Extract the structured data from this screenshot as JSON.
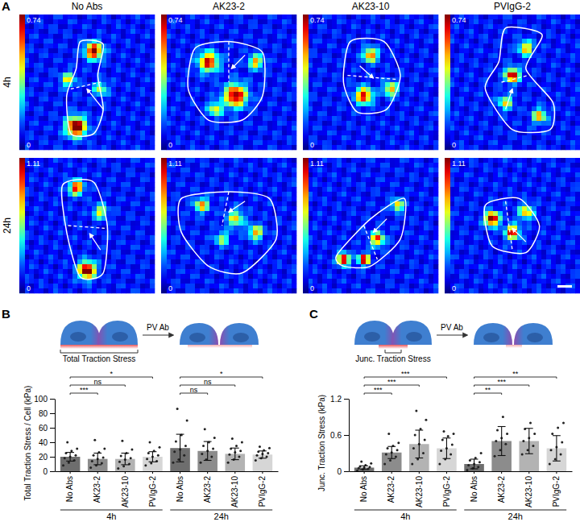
{
  "panel_labels": [
    "A",
    "B",
    "C"
  ],
  "panel_a": {
    "columns": [
      "No Abs",
      "AK23-2",
      "AK23-10",
      "PVIgG-2"
    ],
    "rows": [
      {
        "label": "4h",
        "colorbar": [
          0,
          0.74
        ]
      },
      {
        "label": "24h",
        "colorbar": [
          0,
          1.11
        ]
      }
    ]
  },
  "schematics": [
    {
      "caption": "Total Traction Stress",
      "arrow_label": "PV Ab"
    },
    {
      "caption": "Junc. Traction Stress",
      "arrow_label": "PV Ab"
    }
  ],
  "chart_data": [
    {
      "type": "bar",
      "ylabel": "Total Traction Stress / Cell (kPa)",
      "categories": [
        "No Abs",
        "AK23-2",
        "AK23-10",
        "PVIgG-2",
        "No Abs",
        "AK23-2",
        "AK23-10",
        "PVIgG-2"
      ],
      "values": [
        20,
        17,
        17,
        20,
        32,
        28,
        24,
        23
      ],
      "errors": [
        6,
        8,
        8,
        7,
        19,
        13,
        8,
        5
      ],
      "colors": [
        "#6e6e6e",
        "#8c8c8c",
        "#b3b3b3",
        "#d6d6d6",
        "#6e6e6e",
        "#8c8c8c",
        "#b3b3b3",
        "#d6d6d6"
      ],
      "points": [
        [
          8,
          12,
          15,
          18,
          20,
          22,
          25,
          28,
          31,
          40
        ],
        [
          5,
          8,
          11,
          14,
          17,
          19,
          22,
          26,
          31,
          43
        ],
        [
          4,
          7,
          10,
          13,
          16,
          18,
          21,
          25,
          30,
          42
        ],
        [
          8,
          11,
          14,
          17,
          20,
          22,
          25,
          28,
          33,
          40
        ],
        [
          12,
          16,
          22,
          27,
          30,
          35,
          41,
          50,
          70,
          86
        ],
        [
          12,
          16,
          20,
          24,
          28,
          31,
          35,
          40,
          46,
          58
        ],
        [
          12,
          16,
          20,
          23,
          26,
          28,
          31,
          35,
          40,
          45
        ],
        [
          15,
          18,
          20,
          22,
          24,
          25,
          27,
          29,
          32,
          34
        ]
      ],
      "ylim": [
        0,
        100
      ],
      "yticks": [
        0,
        20,
        40,
        60,
        80,
        100
      ],
      "groups": [
        {
          "label": "4h",
          "from": 0,
          "to": 3
        },
        {
          "label": "24h",
          "from": 4,
          "to": 7
        }
      ],
      "annotations": [
        {
          "text": "***",
          "from": 0,
          "to": 1
        },
        {
          "text": "ns",
          "from": 0,
          "to": 2
        },
        {
          "text": "*",
          "from": 0,
          "to": 3
        },
        {
          "text": "ns",
          "from": 4,
          "to": 5
        },
        {
          "text": "ns",
          "from": 4,
          "to": 6
        },
        {
          "text": "*",
          "from": 4,
          "to": 7
        }
      ]
    },
    {
      "type": "bar",
      "ylabel": "Junc. Traction Stress (kPa)",
      "categories": [
        "No Abs",
        "AK23-2",
        "AK23-10",
        "PVIgG-2",
        "No Abs",
        "AK23-2",
        "AK23-10",
        "PVIgG-2"
      ],
      "values": [
        0.06,
        0.31,
        0.45,
        0.38,
        0.12,
        0.5,
        0.5,
        0.38
      ],
      "errors": [
        0.03,
        0.1,
        0.23,
        0.17,
        0.08,
        0.24,
        0.21,
        0.21
      ],
      "colors": [
        "#6e6e6e",
        "#8c8c8c",
        "#b3b3b3",
        "#d6d6d6",
        "#6e6e6e",
        "#8c8c8c",
        "#b3b3b3",
        "#d6d6d6"
      ],
      "points": [
        [
          0.01,
          0.03,
          0.04,
          0.05,
          0.06,
          0.07,
          0.08,
          0.1,
          0.13,
          0.16
        ],
        [
          0.12,
          0.18,
          0.24,
          0.28,
          0.31,
          0.35,
          0.38,
          0.42,
          0.47,
          0.62
        ],
        [
          0.12,
          0.2,
          0.3,
          0.38,
          0.45,
          0.52,
          0.6,
          0.7,
          0.85,
          1.0
        ],
        [
          0.12,
          0.2,
          0.28,
          0.34,
          0.38,
          0.44,
          0.52,
          0.58,
          0.62,
          0.66
        ],
        [
          0.02,
          0.05,
          0.07,
          0.1,
          0.12,
          0.15,
          0.18,
          0.22,
          0.3
        ],
        [
          0.25,
          0.35,
          0.45,
          0.5,
          0.55,
          0.62,
          0.68,
          0.9
        ],
        [
          0.28,
          0.35,
          0.42,
          0.5,
          0.55,
          0.62,
          0.7,
          0.8
        ],
        [
          0.12,
          0.2,
          0.28,
          0.35,
          0.4,
          0.48,
          0.62,
          0.72,
          0.8
        ]
      ],
      "ylim": [
        0,
        1.2
      ],
      "yticks": [
        0,
        0.6,
        1.2
      ],
      "groups": [
        {
          "label": "4h",
          "from": 0,
          "to": 3
        },
        {
          "label": "24h",
          "from": 4,
          "to": 7
        }
      ],
      "annotations": [
        {
          "text": "***",
          "from": 0,
          "to": 1
        },
        {
          "text": "***",
          "from": 0,
          "to": 2
        },
        {
          "text": "***",
          "from": 0,
          "to": 3
        },
        {
          "text": "**",
          "from": 4,
          "to": 5
        },
        {
          "text": "***",
          "from": 4,
          "to": 6
        },
        {
          "text": "**",
          "from": 4,
          "to": 7
        }
      ]
    }
  ]
}
